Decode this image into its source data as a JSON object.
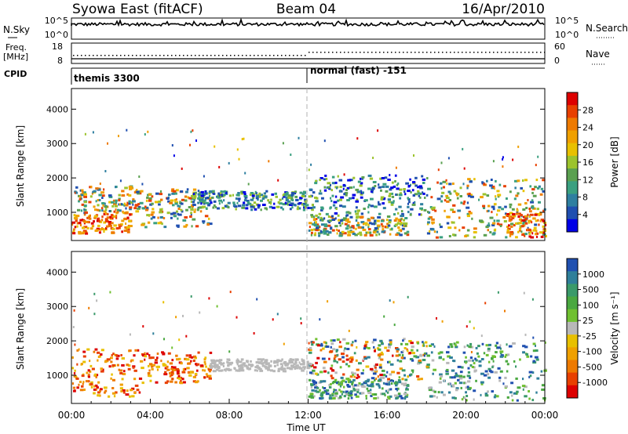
{
  "header": {
    "station": "Syowa East (fitACF)",
    "beam": "Beam 04",
    "date": "16/Apr/2010"
  },
  "noise_panel": {
    "left_label": "N.Sky",
    "right_label": "N.Search",
    "left_ticks": [
      "10^5",
      "10^0"
    ],
    "right_ticks": [
      "10^5",
      "10^0"
    ]
  },
  "freq_panel": {
    "left_label_line1": "Freq.",
    "left_label_line2": "[MHz]",
    "right_label": "Nave",
    "left_ticks": [
      "18",
      "8"
    ],
    "right_ticks": [
      "60",
      "0"
    ]
  },
  "cpid": {
    "label": "CPID",
    "segments": [
      {
        "start_hour": 0,
        "text": "themis 3300"
      },
      {
        "start_hour": 12,
        "text": "normal (fast) -151"
      }
    ]
  },
  "chart_data": [
    {
      "type": "heatmap",
      "name": "power",
      "ylabel": "Slant Range [km]",
      "x_range_hours": [
        0,
        24
      ],
      "ylim": [
        180,
        4600
      ],
      "yticks": [
        "1000",
        "2000",
        "3000",
        "4000"
      ],
      "colorbar": {
        "label": "Power [dB]",
        "ticks": [
          "4",
          "8",
          "12",
          "16",
          "20",
          "24",
          "28"
        ],
        "colors": [
          "#0000e6",
          "#1f4fb0",
          "#2e7fa0",
          "#3aa080",
          "#5aa050",
          "#9cc32d",
          "#e8c000",
          "#f0a000",
          "#ee7a00",
          "#e84000",
          "#dd0000"
        ]
      },
      "regions": [
        {
          "t0": 0.0,
          "t1": 3.0,
          "r0": 400,
          "r1": 1000,
          "level": "high"
        },
        {
          "t0": 0.0,
          "t1": 3.5,
          "r0": 1000,
          "r1": 1800,
          "level": "medium"
        },
        {
          "t0": 3.5,
          "t1": 7.0,
          "r0": 600,
          "r1": 1700,
          "level": "medium"
        },
        {
          "t0": 6.0,
          "t1": 12.0,
          "r0": 1100,
          "r1": 1650,
          "level": "low"
        },
        {
          "t0": 12.0,
          "t1": 17.0,
          "r0": 350,
          "r1": 900,
          "level": "medium"
        },
        {
          "t0": 12.0,
          "t1": 18.0,
          "r0": 900,
          "r1": 2100,
          "level": "low"
        },
        {
          "t0": 18.0,
          "t1": 24.0,
          "r0": 300,
          "r1": 2000,
          "level": "medium"
        },
        {
          "t0": 22.0,
          "t1": 24.0,
          "r0": 300,
          "r1": 1000,
          "level": "high"
        }
      ]
    },
    {
      "type": "heatmap",
      "name": "velocity",
      "ylabel": "Slant Range [km]",
      "xlabel": "Time UT",
      "x_range_hours": [
        0,
        24
      ],
      "xticks": [
        "00:00",
        "04:00",
        "08:00",
        "12:00",
        "16:00",
        "20:00",
        "00:00"
      ],
      "ylim": [
        180,
        4600
      ],
      "yticks": [
        "1000",
        "2000",
        "3000",
        "4000"
      ],
      "colorbar": {
        "label": "Velocity [m s⁻¹]",
        "ticks": [
          "1000",
          "500",
          "100",
          "25",
          "-25",
          "-100",
          "-500",
          "-1000"
        ],
        "colors": [
          "#2050b0",
          "#2f7f9a",
          "#3a9a6a",
          "#4aa840",
          "#70c030",
          "#b8b8b8",
          "#e8c000",
          "#f0a000",
          "#ee7a00",
          "#e84000",
          "#dd0000"
        ]
      },
      "regions": [
        {
          "t0": 0.0,
          "t1": 3.5,
          "r0": 400,
          "r1": 1800,
          "level": "away"
        },
        {
          "t0": 3.5,
          "t1": 7.0,
          "r0": 800,
          "r1": 1700,
          "level": "away"
        },
        {
          "t0": 7.0,
          "t1": 12.0,
          "r0": 1150,
          "r1": 1500,
          "level": "zero"
        },
        {
          "t0": 12.0,
          "t1": 17.0,
          "r0": 350,
          "r1": 900,
          "level": "toward"
        },
        {
          "t0": 12.0,
          "t1": 18.0,
          "r0": 900,
          "r1": 2100,
          "level": "mixed"
        },
        {
          "t0": 18.0,
          "t1": 24.0,
          "r0": 300,
          "r1": 2000,
          "level": "toward"
        }
      ]
    }
  ]
}
